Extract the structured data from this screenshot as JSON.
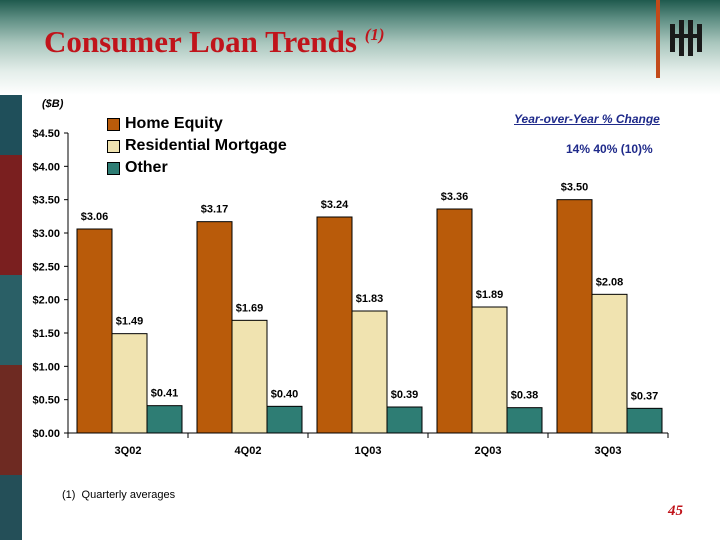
{
  "slide": {
    "title": "Consumer Loan Trends",
    "title_superscript": "(1)",
    "unit_label": "($B)",
    "yoy_title": "Year-over-Year % Change",
    "yoy_values": "14%    40% (10)%",
    "footnote": "(1)  Quarterly averages",
    "page_number": "45"
  },
  "colors": {
    "title": "#c0141b",
    "home_equity": "#b95b0a",
    "residential_mortgage": "#f0e3b0",
    "other": "#2e7d74",
    "yoy_text": "#1f2a8a"
  },
  "chart_data": {
    "type": "bar",
    "categories": [
      "3Q02",
      "4Q02",
      "1Q03",
      "2Q03",
      "3Q03"
    ],
    "series": [
      {
        "name": "Home Equity",
        "values": [
          3.06,
          3.17,
          3.24,
          3.36,
          3.5
        ],
        "labels": [
          "$3.06",
          "$3.17",
          "$3.24",
          "$3.36",
          "$3.50"
        ],
        "color": "#b95b0a"
      },
      {
        "name": "Residential Mortgage",
        "values": [
          1.49,
          1.69,
          1.83,
          1.89,
          2.08
        ],
        "labels": [
          "$1.49",
          "$1.69",
          "$1.83",
          "$1.89",
          "$2.08"
        ],
        "color": "#f0e3b0"
      },
      {
        "name": "Other",
        "values": [
          0.41,
          0.4,
          0.39,
          0.38,
          0.37
        ],
        "labels": [
          "$0.41",
          "$0.40",
          "$0.39",
          "$0.38",
          "$0.37"
        ],
        "color": "#2e7d74"
      }
    ],
    "ylim": [
      0,
      4.5
    ],
    "yticks": [
      0,
      0.5,
      1.0,
      1.5,
      2.0,
      2.5,
      3.0,
      3.5,
      4.0,
      4.5
    ],
    "ytick_labels": [
      "$0.00",
      "$0.50",
      "$1.00",
      "$1.50",
      "$2.00",
      "$2.50",
      "$3.00",
      "$3.50",
      "$4.00",
      "$4.50"
    ],
    "legend_position": "top-left",
    "grid": false
  }
}
